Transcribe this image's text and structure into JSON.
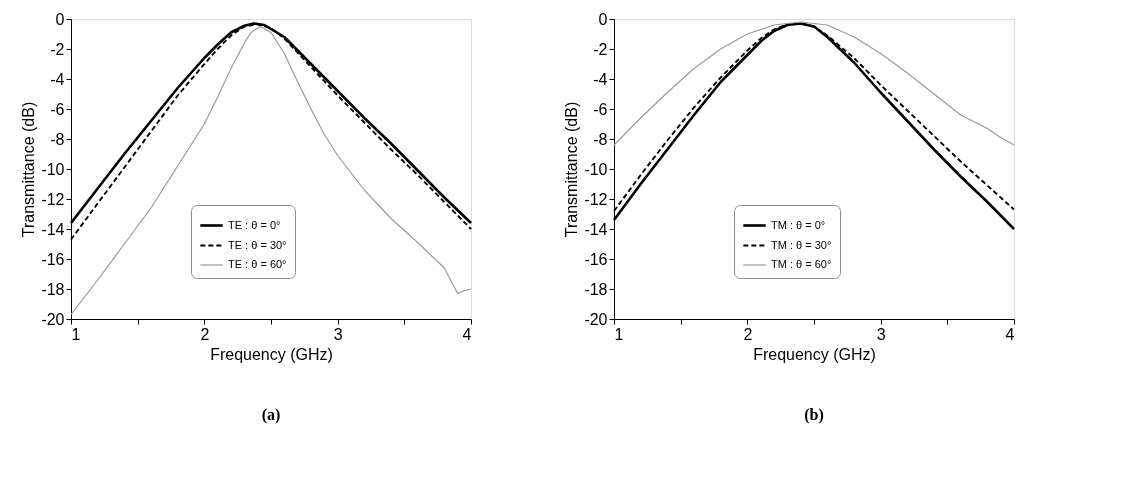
{
  "chart_data": [
    {
      "type": "line",
      "title": "(a)",
      "xlabel": "Frequency (GHz)",
      "ylabel": "Transmittance (dB)",
      "xlim": [
        1,
        4
      ],
      "ylim": [
        -20,
        0
      ],
      "xticks": [
        1,
        {
          "value": 1.5,
          "label": null
        },
        2,
        {
          "value": 2.5,
          "label": null
        },
        3,
        {
          "value": 3.5,
          "label": null
        },
        4
      ],
      "yticks": [
        -20,
        -18,
        -16,
        -14,
        -12,
        -10,
        -8,
        -6,
        -4,
        -2,
        0
      ],
      "grid": false,
      "legend": "bottom",
      "marker": "none",
      "series": [
        {
          "name": "TE : θ = 0°",
          "color": "#000000",
          "line_style": "solid",
          "x": [
            1.0,
            1.2,
            1.4,
            1.6,
            1.8,
            2.0,
            2.1,
            2.2,
            2.3,
            2.37,
            2.45,
            2.6,
            2.8,
            3.0,
            3.2,
            3.4,
            3.6,
            3.8,
            4.0
          ],
          "values": [
            -13.6,
            -11.3,
            -9.0,
            -6.8,
            -4.6,
            -2.6,
            -1.7,
            -0.9,
            -0.45,
            -0.3,
            -0.4,
            -1.2,
            -3.0,
            -4.8,
            -6.6,
            -8.3,
            -10.1,
            -11.9,
            -13.6
          ]
        },
        {
          "name": "TE : θ = 30°",
          "color": "#000000",
          "line_style": "dashed",
          "x": [
            1.0,
            1.2,
            1.4,
            1.6,
            1.8,
            2.0,
            2.1,
            2.2,
            2.3,
            2.4,
            2.5,
            2.6,
            2.8,
            3.0,
            3.2,
            3.4,
            3.6,
            3.8,
            4.0
          ],
          "values": [
            -14.7,
            -12.3,
            -9.9,
            -7.5,
            -5.1,
            -3.0,
            -2.0,
            -1.1,
            -0.5,
            -0.35,
            -0.6,
            -1.3,
            -3.2,
            -5.1,
            -6.9,
            -8.7,
            -10.4,
            -12.2,
            -14.0
          ]
        },
        {
          "name": "TE : θ = 60°",
          "color": "#999999",
          "line_style": "solid",
          "x": [
            1.0,
            1.2,
            1.4,
            1.6,
            1.8,
            2.0,
            2.1,
            2.2,
            2.3,
            2.35,
            2.42,
            2.5,
            2.6,
            2.7,
            2.8,
            2.9,
            3.0,
            3.2,
            3.4,
            3.6,
            3.8,
            3.9,
            3.95,
            4.0
          ],
          "values": [
            -19.7,
            -17.4,
            -15.0,
            -12.6,
            -9.8,
            -7.0,
            -5.2,
            -3.3,
            -1.6,
            -0.9,
            -0.5,
            -0.9,
            -2.3,
            -4.2,
            -6.0,
            -7.7,
            -9.1,
            -11.4,
            -13.3,
            -14.9,
            -16.6,
            -18.3,
            -18.1,
            -18.0
          ]
        }
      ]
    },
    {
      "type": "line",
      "title": "(b)",
      "xlabel": "Frequency (GHz)",
      "ylabel": "Transmittance (dB)",
      "xlim": [
        1,
        4
      ],
      "ylim": [
        -20,
        0
      ],
      "xticks": [
        1,
        {
          "value": 1.5,
          "label": null
        },
        2,
        {
          "value": 2.5,
          "label": null
        },
        3,
        {
          "value": 3.5,
          "label": null
        },
        4
      ],
      "yticks": [
        -20,
        -18,
        -16,
        -14,
        -12,
        -10,
        -8,
        -6,
        -4,
        -2,
        0
      ],
      "grid": false,
      "legend": "bottom",
      "marker": "none",
      "series": [
        {
          "name": "TM : θ = 0°",
          "color": "#000000",
          "line_style": "solid",
          "x": [
            1.0,
            1.2,
            1.4,
            1.6,
            1.8,
            2.0,
            2.1,
            2.2,
            2.3,
            2.4,
            2.5,
            2.6,
            2.8,
            3.0,
            3.2,
            3.4,
            3.6,
            3.8,
            4.0
          ],
          "values": [
            -13.4,
            -11.0,
            -8.7,
            -6.4,
            -4.2,
            -2.4,
            -1.5,
            -0.8,
            -0.4,
            -0.3,
            -0.5,
            -1.2,
            -2.9,
            -4.9,
            -6.8,
            -8.7,
            -10.5,
            -12.2,
            -14.0
          ]
        },
        {
          "name": "TM : θ = 30°",
          "color": "#000000",
          "line_style": "dashed",
          "x": [
            1.0,
            1.2,
            1.4,
            1.6,
            1.8,
            2.0,
            2.1,
            2.2,
            2.3,
            2.4,
            2.5,
            2.6,
            2.8,
            3.0,
            3.2,
            3.4,
            3.6,
            3.8,
            4.0
          ],
          "values": [
            -12.8,
            -10.4,
            -8.1,
            -5.9,
            -3.9,
            -2.1,
            -1.3,
            -0.7,
            -0.35,
            -0.3,
            -0.5,
            -1.1,
            -2.6,
            -4.4,
            -6.1,
            -7.8,
            -9.5,
            -11.1,
            -12.7
          ]
        },
        {
          "name": "TM : θ = 60°",
          "color": "#999999",
          "line_style": "solid",
          "x": [
            1.0,
            1.2,
            1.4,
            1.6,
            1.8,
            2.0,
            2.2,
            2.4,
            2.6,
            2.8,
            3.0,
            3.2,
            3.4,
            3.6,
            3.8,
            3.9,
            4.0
          ],
          "values": [
            -8.4,
            -6.6,
            -4.9,
            -3.3,
            -2.0,
            -1.0,
            -0.4,
            -0.2,
            -0.4,
            -1.2,
            -2.3,
            -3.6,
            -5.0,
            -6.4,
            -7.3,
            -7.9,
            -8.4
          ]
        }
      ]
    }
  ]
}
